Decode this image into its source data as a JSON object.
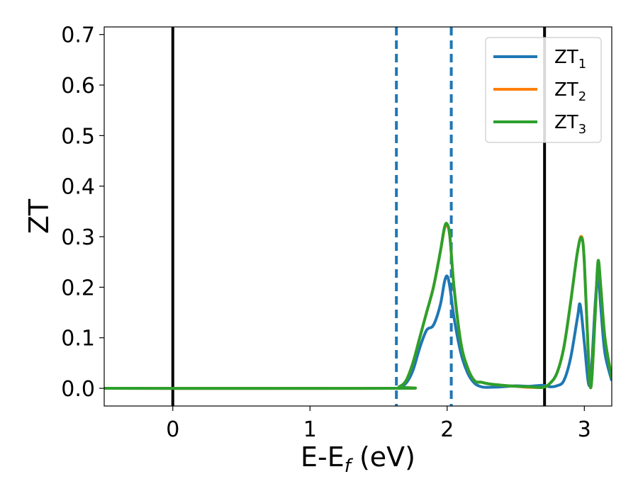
{
  "chart_data": {
    "type": "line",
    "xlabel": "E-E",
    "xlabel_sub": "f",
    "xlabel_unit": " (eV)",
    "ylabel": "ZT",
    "xlim": [
      -0.5,
      3.2
    ],
    "ylim": [
      -0.035,
      0.715
    ],
    "xticks": [
      0,
      1,
      2,
      3
    ],
    "yticks": [
      0.0,
      0.1,
      0.2,
      0.3,
      0.4,
      0.5,
      0.6,
      0.7
    ],
    "xtick_labels": [
      "0",
      "1",
      "2",
      "3"
    ],
    "ytick_labels": [
      "0.0",
      "0.1",
      "0.2",
      "0.3",
      "0.4",
      "0.5",
      "0.6",
      "0.7"
    ],
    "grid": false,
    "legend_position": "top-right",
    "vlines_solid": [
      0.0,
      2.71
    ],
    "vlines_dashed": [
      1.63,
      2.03
    ],
    "colors": {
      "ZT1": "#1f77b4",
      "ZT2": "#ff7f0e",
      "ZT3": "#2ca02c",
      "solid_vline": "#000000",
      "dashed_vline": "#1f77b4"
    },
    "series": [
      {
        "name": "ZT",
        "sub": "1",
        "color": "#1f77b4",
        "x": [
          -0.5,
          1.6,
          1.65,
          1.7,
          1.75,
          1.8,
          1.85,
          1.9,
          1.95,
          1.98,
          2.0,
          2.02,
          2.05,
          2.1,
          2.15,
          2.2,
          2.25,
          2.3,
          2.4,
          2.5,
          2.6,
          2.7,
          2.75,
          2.8,
          2.85,
          2.9,
          2.95,
          2.97,
          3.0,
          3.03,
          3.05,
          3.08,
          3.1,
          3.12,
          3.15,
          3.2
        ],
        "y": [
          0.0,
          0.0,
          0.002,
          0.01,
          0.035,
          0.08,
          0.115,
          0.125,
          0.165,
          0.21,
          0.222,
          0.2,
          0.14,
          0.07,
          0.03,
          0.01,
          0.003,
          0.002,
          0.003,
          0.005,
          0.004,
          0.006,
          0.003,
          0.005,
          0.015,
          0.06,
          0.14,
          0.165,
          0.09,
          0.01,
          0.03,
          0.17,
          0.225,
          0.16,
          0.07,
          0.015
        ]
      },
      {
        "name": "ZT",
        "sub": "2",
        "color": "#ff7f0e",
        "x": [
          -0.5,
          1.6,
          1.65,
          1.7,
          1.75,
          1.8,
          1.85,
          1.9,
          1.95,
          1.98,
          2.0,
          2.02,
          2.05,
          2.1,
          2.15,
          2.2,
          2.25,
          2.3,
          2.4,
          2.5,
          2.6,
          2.7,
          2.75,
          2.8,
          2.85,
          2.9,
          2.95,
          2.98,
          3.0,
          3.03,
          3.05,
          3.08,
          3.1,
          3.12,
          3.15,
          3.2
        ],
        "y": [
          0.0,
          0.0,
          0.003,
          0.015,
          0.05,
          0.1,
          0.15,
          0.2,
          0.27,
          0.315,
          0.322,
          0.3,
          0.2,
          0.09,
          0.04,
          0.015,
          0.012,
          0.009,
          0.006,
          0.004,
          0.002,
          0.002,
          0.01,
          0.03,
          0.08,
          0.17,
          0.27,
          0.3,
          0.25,
          0.06,
          0.005,
          0.15,
          0.25,
          0.2,
          0.1,
          0.02
        ]
      },
      {
        "name": "ZT",
        "sub": "3",
        "color": "#2ca02c",
        "x": [
          -0.5,
          1.6,
          1.65,
          1.7,
          1.75,
          1.8,
          1.85,
          1.9,
          1.95,
          1.98,
          2.0,
          2.02,
          2.05,
          2.1,
          2.15,
          2.2,
          2.25,
          2.3,
          2.4,
          2.5,
          2.6,
          2.7,
          2.75,
          2.8,
          2.85,
          2.9,
          2.95,
          2.98,
          3.0,
          3.03,
          3.05,
          3.08,
          3.1,
          3.12,
          3.15,
          3.2
        ],
        "y": [
          0.0,
          0.0,
          0.003,
          0.015,
          0.05,
          0.1,
          0.15,
          0.2,
          0.27,
          0.318,
          0.325,
          0.3,
          0.2,
          0.09,
          0.04,
          0.015,
          0.012,
          0.009,
          0.006,
          0.004,
          0.003,
          0.002,
          0.01,
          0.03,
          0.08,
          0.17,
          0.27,
          0.298,
          0.25,
          0.06,
          0.005,
          0.15,
          0.252,
          0.2,
          0.1,
          0.02
        ]
      }
    ]
  }
}
